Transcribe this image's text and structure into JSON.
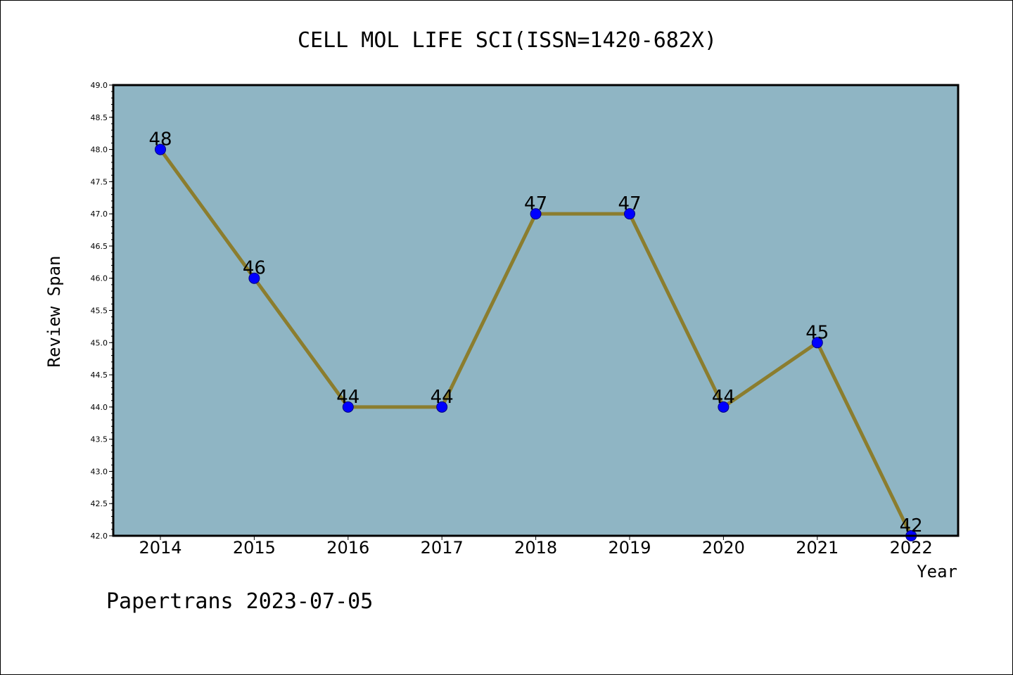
{
  "footer": "Papertrans 2023-07-05",
  "colors": {
    "plot_background": "#8fb5c4",
    "line": "#8b7d2e",
    "marker": "#0000ff",
    "marker_edge": "#000080"
  },
  "chart_data": {
    "type": "line",
    "title": "CELL MOL LIFE SCI(ISSN=1420-682X)",
    "xlabel": "Year",
    "ylabel": "Review Span",
    "categories": [
      "2014",
      "2015",
      "2016",
      "2017",
      "2018",
      "2019",
      "2020",
      "2021",
      "2022"
    ],
    "values": [
      48,
      46,
      44,
      44,
      47,
      47,
      44,
      45,
      42
    ],
    "data_labels": [
      "48",
      "46",
      "44",
      "44",
      "47",
      "47",
      "44",
      "45",
      "42"
    ],
    "ylim": [
      42.0,
      49.0
    ],
    "yticks": [
      "42.0",
      "42.5",
      "43.0",
      "43.5",
      "44.0",
      "44.5",
      "45.0",
      "45.5",
      "46.0",
      "46.5",
      "47.0",
      "47.5",
      "48.0",
      "48.5",
      "49.0"
    ],
    "grid": false,
    "legend": "none"
  }
}
